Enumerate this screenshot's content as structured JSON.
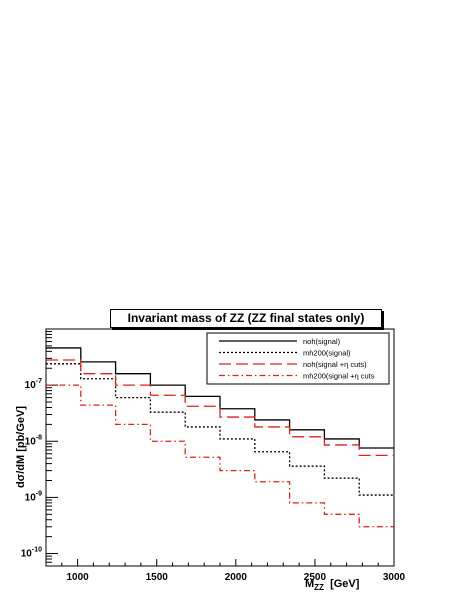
{
  "chart_data": {
    "type": "line",
    "title": "Invariant mass of ZZ (ZZ final states only)",
    "xlabel_main": "M",
    "xlabel_sub": "ZZ",
    "xlabel_unit": "[GeV]",
    "ylabel": "dσ/dM  [pb/GeV]",
    "xlim": [
      800,
      3000
    ],
    "ylim": [
      6e-11,
      1e-06
    ],
    "yscale": "log",
    "x_ticks": [
      1000,
      1500,
      2000,
      2500,
      3000
    ],
    "y_ticks": [
      "10^-7",
      "10^-8",
      "10^-9",
      "10^-10"
    ],
    "bin_edges": [
      800,
      1020,
      1240,
      1460,
      1680,
      1900,
      2120,
      2340,
      2560,
      2780,
      3000
    ],
    "legend_position": "top-right",
    "series": [
      {
        "name": "noh(signal)",
        "color": "#000000",
        "style": "solid",
        "values": [
          4.6e-07,
          2.6e-07,
          1.6e-07,
          1e-07,
          6.3e-08,
          3.8e-08,
          2.4e-08,
          1.6e-08,
          1.1e-08,
          7.6e-09
        ]
      },
      {
        "name": "mh200(signal)",
        "color": "#000000",
        "style": "dotted",
        "values": [
          2.4e-07,
          1.3e-07,
          6e-08,
          3.3e-08,
          1.8e-08,
          1.1e-08,
          6.5e-09,
          3.6e-09,
          2.2e-09,
          1.1e-09
        ]
      },
      {
        "name": "noh(signal +η cuts)",
        "color": "#e0201b",
        "style": "dashed",
        "values": [
          2.8e-07,
          1.6e-07,
          1e-07,
          6.6e-08,
          4.2e-08,
          2.7e-08,
          1.8e-08,
          1.2e-08,
          8.6e-09,
          5.6e-09
        ]
      },
      {
        "name": "mh200(signal +η cuts",
        "color": "#e0201b",
        "style": "dashdot",
        "values": [
          1e-07,
          4.4e-08,
          2e-08,
          1e-08,
          5.2e-09,
          3e-09,
          1.9e-09,
          8e-10,
          5e-10,
          3e-10
        ]
      }
    ]
  }
}
